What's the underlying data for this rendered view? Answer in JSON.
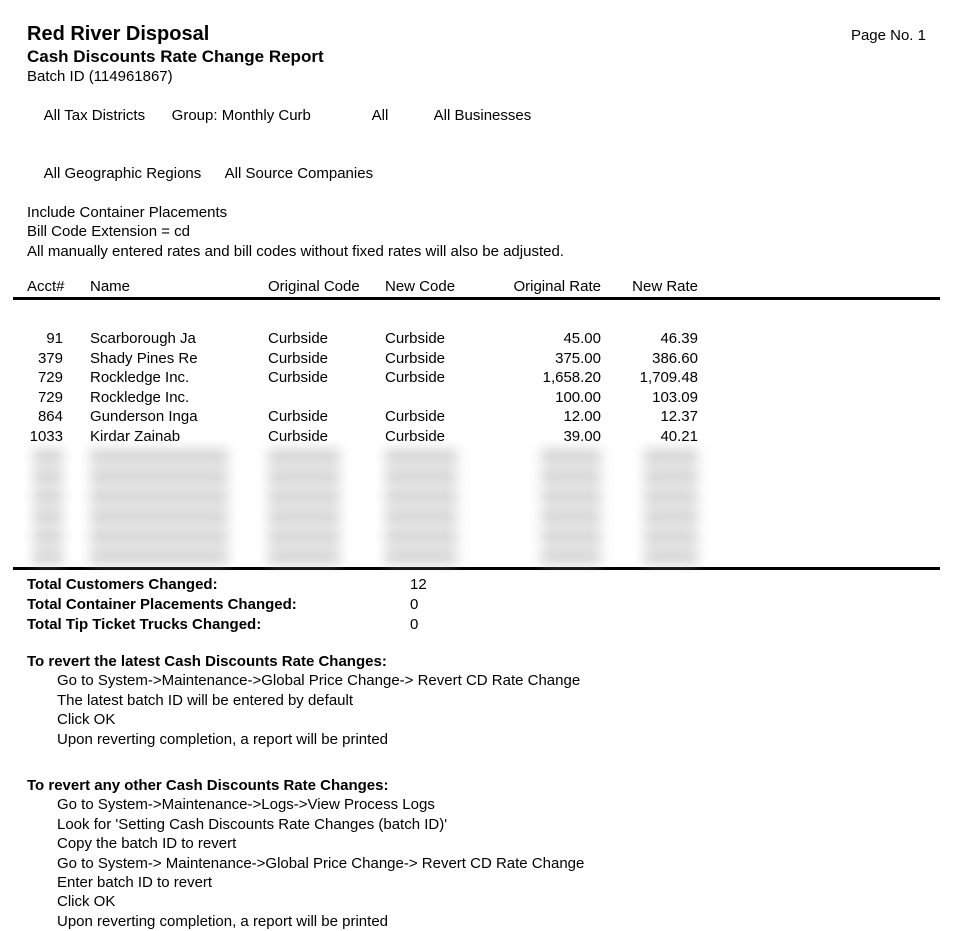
{
  "header": {
    "company": "Red River Disposal",
    "page_no": "Page No. 1",
    "report_title": "Cash Discounts Rate Change Report",
    "batch_id": "Batch ID (114961867)",
    "filters_line1": [
      "All Tax Districts",
      "Group: Monthly Curb",
      "All",
      "All Businesses"
    ],
    "filters_line2": [
      "All Geographic Regions",
      "All Source Companies"
    ],
    "include_line": "Include Container Placements",
    "bill_code_line": "Bill Code Extension = cd",
    "note_line": "All manually entered rates and bill codes without fixed rates will also be adjusted."
  },
  "table": {
    "columns": [
      "Acct#",
      "Name",
      "Original Code",
      "New Code",
      "Original Rate",
      "New Rate"
    ],
    "rows": [
      {
        "acct": "91",
        "name": "Scarborough Ja",
        "original_code": "Curbside",
        "new_code": "Curbside",
        "original_rate": "45.00",
        "new_rate": "46.39"
      },
      {
        "acct": "379",
        "name": "Shady Pines Re",
        "original_code": "Curbside",
        "new_code": "Curbside",
        "original_rate": "375.00",
        "new_rate": "386.60"
      },
      {
        "acct": "729",
        "name": "Rockledge Inc.",
        "original_code": "Curbside",
        "new_code": "Curbside",
        "original_rate": "1,658.20",
        "new_rate": "1,709.48"
      },
      {
        "acct": "729",
        "name": "Rockledge Inc.",
        "original_code": "",
        "new_code": "",
        "original_rate": "100.00",
        "new_rate": "103.09"
      },
      {
        "acct": "864",
        "name": "Gunderson Inga",
        "original_code": "Curbside",
        "new_code": "Curbside",
        "original_rate": "12.00",
        "new_rate": "12.37"
      },
      {
        "acct": "1033",
        "name": "Kirdar Zainab",
        "original_code": "Curbside",
        "new_code": "Curbside",
        "original_rate": "39.00",
        "new_rate": "40.21"
      }
    ]
  },
  "totals": {
    "rows": [
      {
        "label": "Total Customers Changed:",
        "value": "12"
      },
      {
        "label": "Total Container Placements Changed:",
        "value": "0"
      },
      {
        "label": "Total Tip Ticket Trucks Changed:",
        "value": "0"
      }
    ]
  },
  "instructions": [
    {
      "heading": "To revert the latest Cash Discounts Rate Changes:",
      "steps": [
        "Go to System->Maintenance->Global Price Change-> Revert CD Rate Change",
        "The latest batch ID will be entered by default",
        "Click OK",
        "Upon reverting completion, a report will be printed"
      ]
    },
    {
      "heading": "To revert any other Cash Discounts Rate Changes:",
      "steps": [
        "Go to System->Maintenance->Logs->View Process Logs",
        "Look for 'Setting Cash Discounts Rate Changes (batch ID)'",
        "Copy the batch ID to revert",
        "Go to System-> Maintenance->Global Price Change-> Revert CD Rate Change",
        "Enter batch ID to revert",
        "Click OK",
        "Upon reverting completion, a report will be printed"
      ]
    }
  ]
}
